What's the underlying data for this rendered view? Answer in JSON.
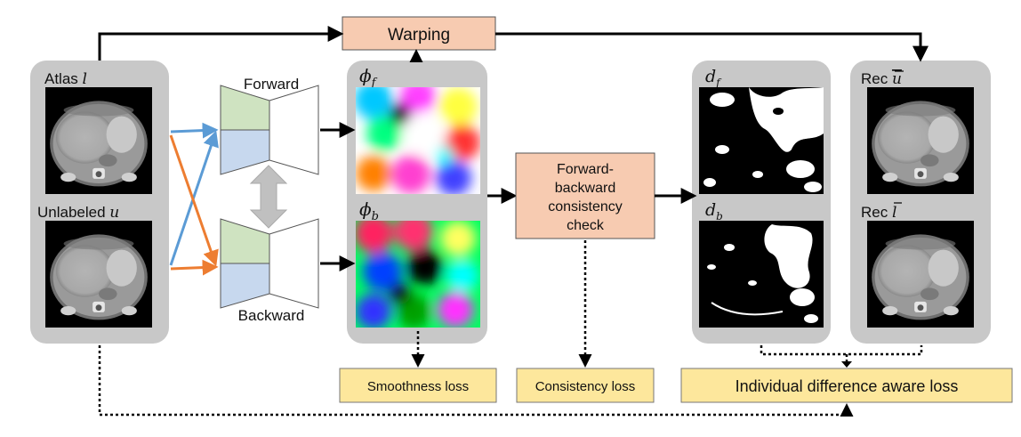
{
  "colors": {
    "panel_gray": "#c8c8c8",
    "process_box": "#f7cbb1",
    "loss_box": "#fde79c",
    "encoder_green": "#cfe3c1",
    "decoder_blue": "#c7d8ee",
    "arrow_blue": "#5b9bd5",
    "arrow_orange": "#ed7d31",
    "double_arrow": "#c0c0c0"
  },
  "warping": {
    "label": "Warping"
  },
  "inputs": {
    "atlas_label": "Atlas",
    "atlas_symbol": "l",
    "unlabeled_label": "Unlabeled",
    "unlabeled_symbol": "u"
  },
  "networks": {
    "forward_label": "Forward",
    "backward_label": "Backward"
  },
  "flows": {
    "forward_base": "ϕ",
    "forward_sub": "f",
    "backward_base": "ϕ",
    "backward_sub": "b"
  },
  "consistency_check": {
    "lines": [
      "Forward-",
      "backward",
      "consistency",
      "check"
    ]
  },
  "differences": {
    "forward_base": "d",
    "forward_sub": "f",
    "backward_base": "d",
    "backward_sub": "b"
  },
  "reconstructions": {
    "rec_label": "Rec",
    "rec_u_symbol": "u",
    "rec_l_symbol": "l"
  },
  "losses": {
    "smoothness": "Smoothness loss",
    "consistency": "Consistency loss",
    "individual": "Individual difference aware loss"
  }
}
